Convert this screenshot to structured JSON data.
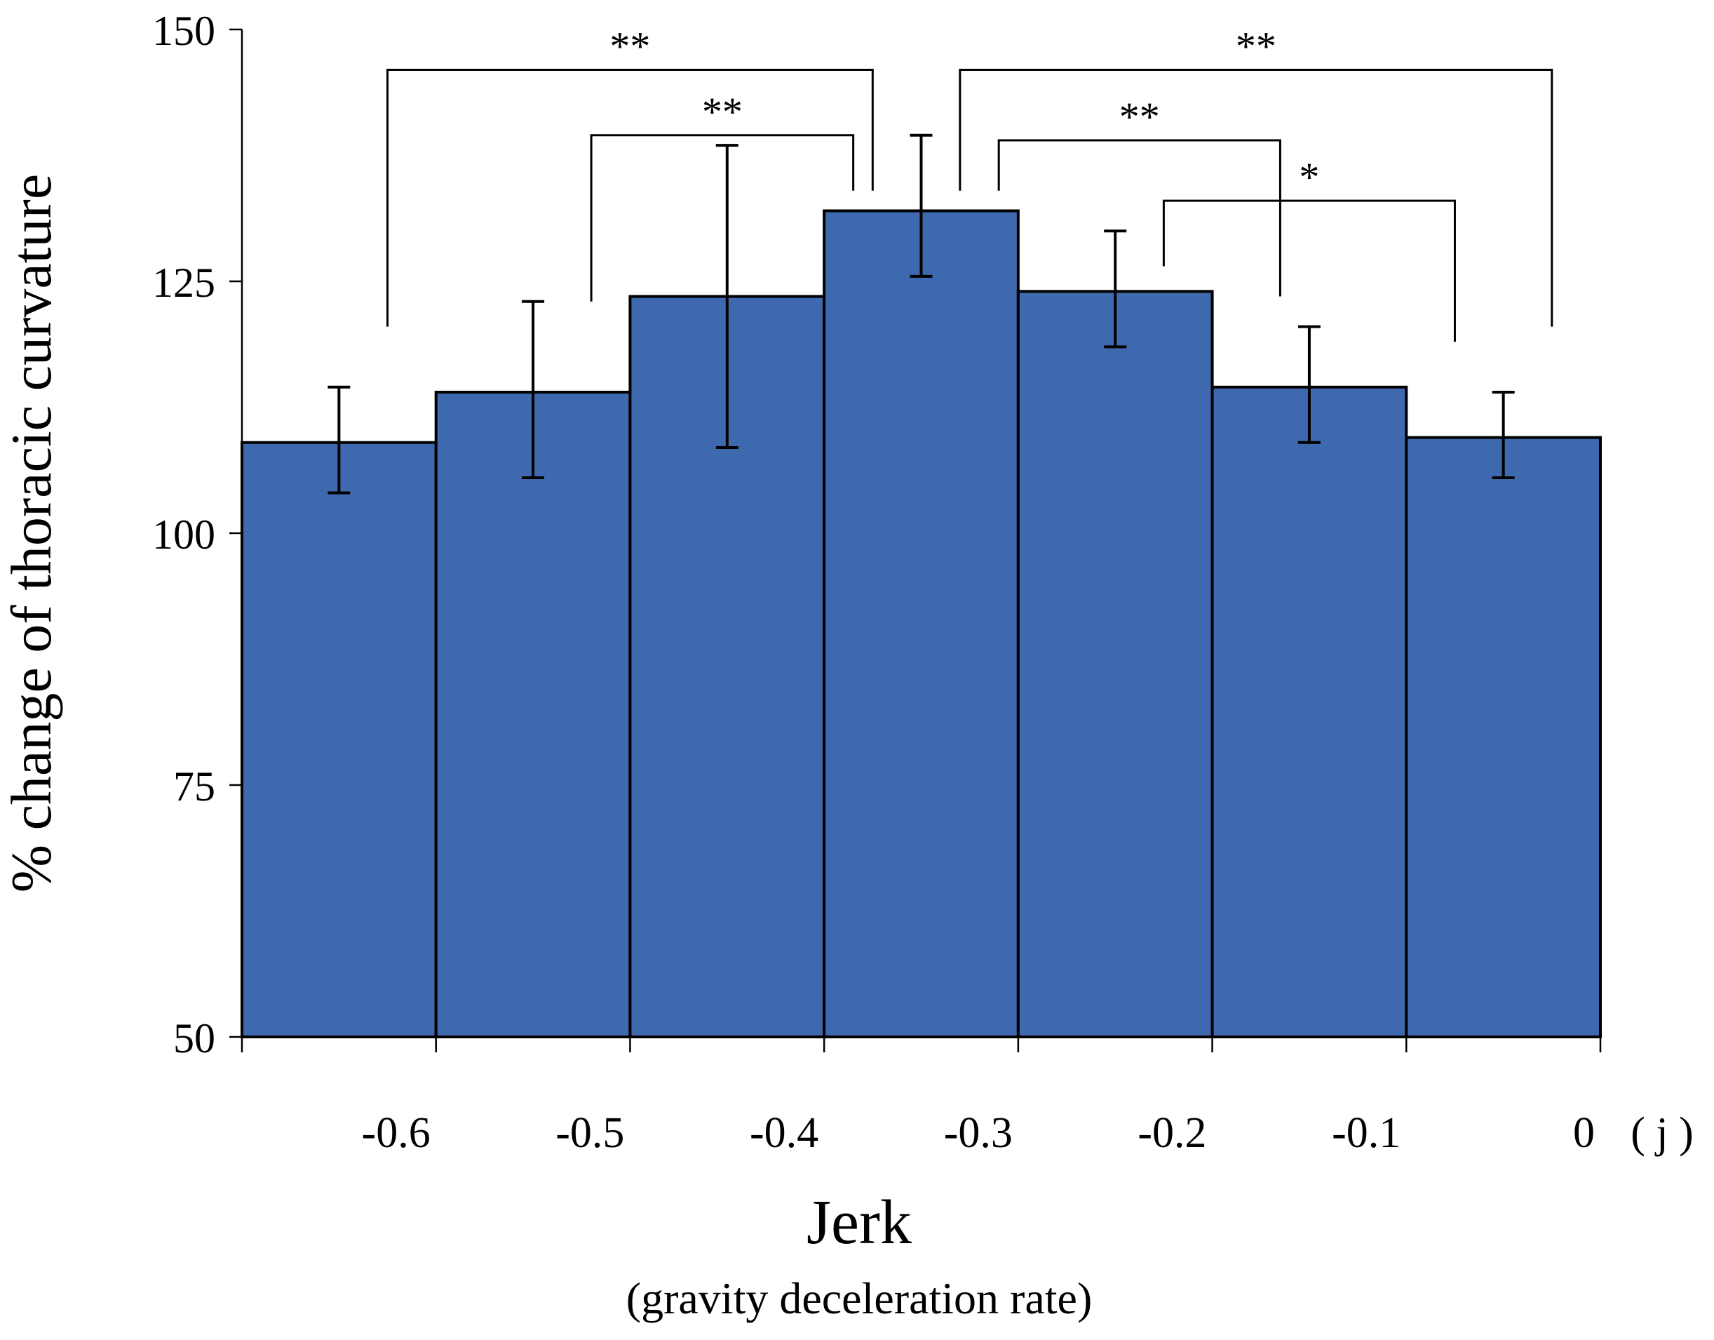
{
  "chart_data": {
    "type": "bar",
    "ylabel": "% change of thoracic curvature",
    "xlabel": "Jerk",
    "xlabel_sub": "(gravity deceleration rate)",
    "x_unit": "( j )",
    "ylim": [
      50,
      150
    ],
    "xlim": [
      -0.7,
      0
    ],
    "y_ticks": [
      50,
      75,
      100,
      125,
      150
    ],
    "y_tick_labels": [
      "50",
      "75",
      "100",
      "125",
      "150"
    ],
    "x_ticks": [
      -0.7,
      -0.6,
      -0.5,
      -0.4,
      -0.3,
      -0.2,
      -0.1,
      0
    ],
    "x_tick_labels": [
      {
        "x": -0.6,
        "label": "-0.6"
      },
      {
        "x": -0.5,
        "label": "-0.5"
      },
      {
        "x": -0.4,
        "label": "-0.4"
      },
      {
        "x": -0.3,
        "label": "-0.3"
      },
      {
        "x": -0.2,
        "label": "-0.2"
      },
      {
        "x": -0.1,
        "label": "-0.1"
      },
      {
        "x": 0,
        "label": "0"
      }
    ],
    "bars": [
      {
        "x0": -0.7,
        "x1": -0.6,
        "value": 109.0,
        "err_low": 104.0,
        "err_high": 114.5
      },
      {
        "x0": -0.6,
        "x1": -0.5,
        "value": 114.0,
        "err_low": 105.5,
        "err_high": 123.0
      },
      {
        "x0": -0.5,
        "x1": -0.4,
        "value": 123.5,
        "err_low": 108.5,
        "err_high": 138.5
      },
      {
        "x0": -0.4,
        "x1": -0.3,
        "value": 132.0,
        "err_low": 125.5,
        "err_high": 139.5
      },
      {
        "x0": -0.3,
        "x1": -0.2,
        "value": 124.0,
        "err_low": 118.5,
        "err_high": 130.0
      },
      {
        "x0": -0.2,
        "x1": -0.1,
        "value": 114.5,
        "err_low": 109.0,
        "err_high": 120.5
      },
      {
        "x0": -0.1,
        "x1": 0.0,
        "value": 109.5,
        "err_low": 105.5,
        "err_high": 114.0
      }
    ],
    "significance": [
      {
        "label": "**",
        "left_x": -0.625,
        "right_x": -0.375,
        "left_y": 120.5,
        "right_y": 134.0,
        "top_y": 146.0
      },
      {
        "label": "**",
        "left_x": -0.52,
        "right_x": -0.385,
        "left_y": 123.0,
        "right_y": 134.0,
        "top_y": 139.5
      },
      {
        "label": "**",
        "left_x": -0.33,
        "right_x": -0.025,
        "left_y": 134.0,
        "right_y": 120.5,
        "top_y": 146.0
      },
      {
        "label": "**",
        "left_x": -0.31,
        "right_x": -0.165,
        "left_y": 134.0,
        "right_y": 123.5,
        "top_y": 139.0
      },
      {
        "label": "*",
        "left_x": -0.225,
        "right_x": -0.075,
        "left_y": 126.5,
        "right_y": 119.0,
        "top_y": 133.0
      }
    ],
    "bar_color": "#3F69AE",
    "edge_color": "#000000"
  }
}
